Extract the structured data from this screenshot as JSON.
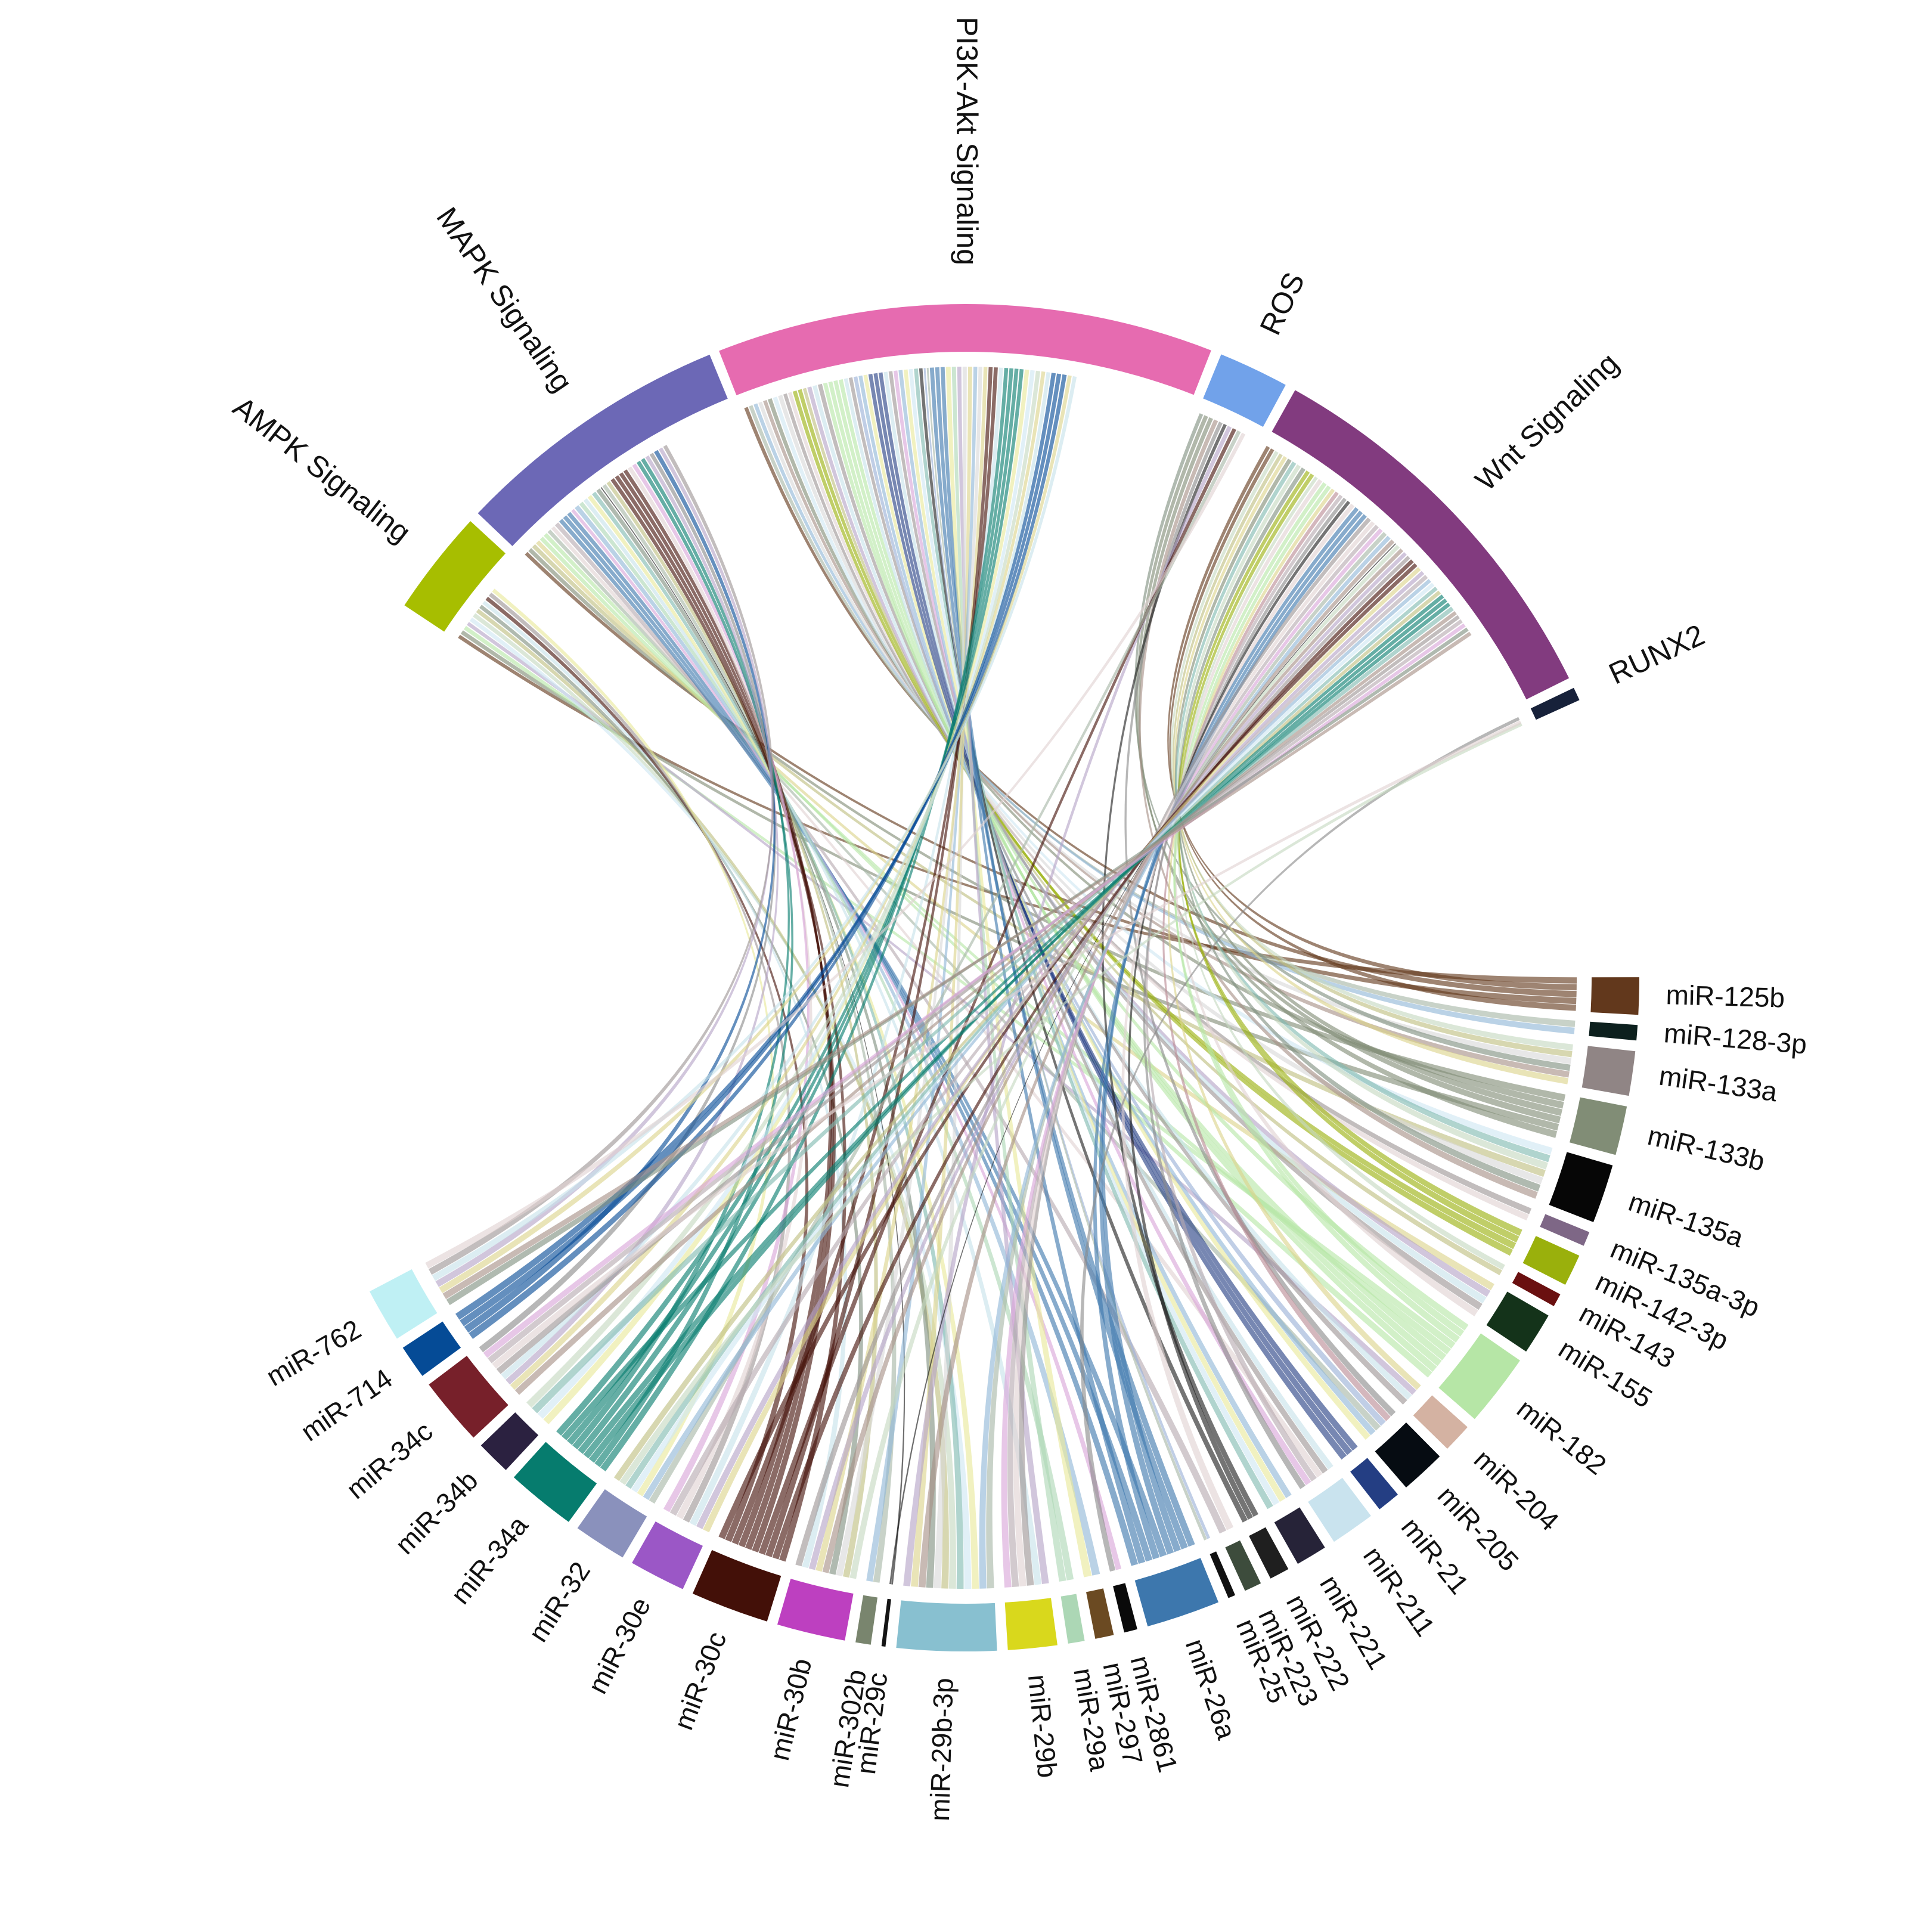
{
  "chart_data": {
    "type": "chord",
    "title": "",
    "sectors": [
      {
        "name": "AMPK Signaling",
        "group": "pathway",
        "color": "#a7be00",
        "start": -0.985,
        "end": -0.826
      },
      {
        "name": "MAPK Signaling",
        "group": "pathway",
        "color": "#6c68b6",
        "start": -0.81,
        "end": -0.39
      },
      {
        "name": "PI3K-Akt Signaling",
        "group": "pathway",
        "color": "#e66bb0",
        "start": -0.375,
        "end": 0.373
      },
      {
        "name": "ROS",
        "group": "pathway",
        "color": "#71a2ea",
        "start": 0.389,
        "end": 0.495
      },
      {
        "name": "Wnt Signaling",
        "group": "pathway",
        "color": "#823b7f",
        "start": 0.511,
        "end": 1.11
      },
      {
        "name": "RUNX2",
        "group": "pathway",
        "color": "#17213a",
        "start": 1.126,
        "end": 1.146
      },
      {
        "name": "miR-125b",
        "group": "mirna",
        "color": "#62381c",
        "start": 1.57,
        "end": 1.626
      },
      {
        "name": "miR-128-3p",
        "group": "mirna",
        "color": "#0d201e",
        "start": 1.641,
        "end": 1.664
      },
      {
        "name": "miR-133a",
        "group": "mirna",
        "color": "#908585",
        "start": 1.68,
        "end": 1.747
      },
      {
        "name": "miR-133b",
        "group": "mirna",
        "color": "#818d76",
        "start": 1.763,
        "end": 1.837
      },
      {
        "name": "miR-135a",
        "group": "mirna",
        "color": "#060606",
        "start": 1.853,
        "end": 1.942
      },
      {
        "name": "miR-135a-3p",
        "group": "mirna",
        "color": "#7e6786",
        "start": 1.958,
        "end": 1.98
      },
      {
        "name": "miR-142-3p",
        "group": "mirna",
        "color": "#9ab00c",
        "start": 1.996,
        "end": 2.044
      },
      {
        "name": "miR-143",
        "group": "mirna",
        "color": "#6a1010",
        "start": 2.06,
        "end": 2.08
      },
      {
        "name": "miR-155",
        "group": "mirna",
        "color": "#14331a",
        "start": 2.096,
        "end": 2.159
      },
      {
        "name": "miR-182",
        "group": "mirna",
        "color": "#b6e6a6",
        "start": 2.175,
        "end": 2.285
      },
      {
        "name": "miR-204",
        "group": "mirna",
        "color": "#d4b2a2",
        "start": 2.301,
        "end": 2.345
      },
      {
        "name": "miR-205",
        "group": "mirna",
        "color": "#060c12",
        "start": 2.361,
        "end": 2.429
      },
      {
        "name": "miR-21",
        "group": "mirna",
        "color": "#243e83",
        "start": 2.445,
        "end": 2.48
      },
      {
        "name": "miR-211",
        "group": "mirna",
        "color": "#c9e3ee",
        "start": 2.496,
        "end": 2.563
      },
      {
        "name": "miR-221",
        "group": "mirna",
        "color": "#262338",
        "start": 2.579,
        "end": 2.626
      },
      {
        "name": "miR-222",
        "group": "mirna",
        "color": "#1f1f1f",
        "start": 2.642,
        "end": 2.672
      },
      {
        "name": "miR-223",
        "group": "mirna",
        "color": "#3d4c3c",
        "start": 2.688,
        "end": 2.714
      },
      {
        "name": "miR-25",
        "group": "mirna",
        "color": "#111111",
        "start": 2.73,
        "end": 2.741
      },
      {
        "name": "miR-26a",
        "group": "mirna",
        "color": "#3d77ad",
        "start": 2.757,
        "end": 2.868
      },
      {
        "name": "miR-2861",
        "group": "mirna",
        "color": "#0a0a0a",
        "start": 2.884,
        "end": 2.904
      },
      {
        "name": "miR-297",
        "group": "mirna",
        "color": "#6b4a22",
        "start": 2.92,
        "end": 2.948
      },
      {
        "name": "miR-29a",
        "group": "mirna",
        "color": "#acd7b5",
        "start": 2.964,
        "end": 2.989
      },
      {
        "name": "miR-29b",
        "group": "mirna",
        "color": "#d9d81c",
        "start": 3.005,
        "end": 3.079
      },
      {
        "name": "miR-29b-3p",
        "group": "mirna",
        "color": "#88c0d0",
        "start": 3.095,
        "end": 3.245
      },
      {
        "name": "miR-29c",
        "group": "mirna",
        "color": "#141414",
        "start": 3.261,
        "end": 3.267
      },
      {
        "name": "miR-302b",
        "group": "mirna",
        "color": "#79856e",
        "start": 3.283,
        "end": 3.306
      },
      {
        "name": "miR-30b",
        "group": "mirna",
        "color": "#bd40c0",
        "start": 3.322,
        "end": 3.425
      },
      {
        "name": "miR-30c",
        "group": "mirna",
        "color": "#431008",
        "start": 3.441,
        "end": 3.559
      },
      {
        "name": "miR-30e",
        "group": "mirna",
        "color": "#9b57c6",
        "start": 3.575,
        "end": 3.66
      },
      {
        "name": "miR-32",
        "group": "mirna",
        "color": "#8a91bc",
        "start": 3.676,
        "end": 3.756
      },
      {
        "name": "miR-34a",
        "group": "mirna",
        "color": "#067c6e",
        "start": 3.772,
        "end": 3.877
      },
      {
        "name": "miR-34b",
        "group": "mirna",
        "color": "#2b2140",
        "start": 3.893,
        "end": 3.945
      },
      {
        "name": "miR-34c",
        "group": "mirna",
        "color": "#77202a",
        "start": 3.961,
        "end": 4.064
      },
      {
        "name": "miR-714",
        "group": "mirna",
        "color": "#054b96",
        "start": 4.08,
        "end": 4.131
      },
      {
        "name": "miR-762",
        "group": "mirna",
        "color": "#bff0f4",
        "start": 4.147,
        "end": 4.228
      }
    ],
    "link_colors": [
      "#c6e2ea",
      "#b6aab0",
      "#b98a94",
      "#8fb7d7",
      "#7fbab0",
      "#d9d9d9",
      "#dcd48a",
      "#9c9494",
      "#d9a5d9",
      "#9ab0d6",
      "#e8e89a",
      "#c5d9c0",
      "#7f8f7f",
      "#b4a3c7",
      "#e1d2d2",
      "#8a8a8a",
      "#a6b6a6",
      "#cfe6f2",
      "#bfbf7f",
      "#a78f86"
    ]
  }
}
